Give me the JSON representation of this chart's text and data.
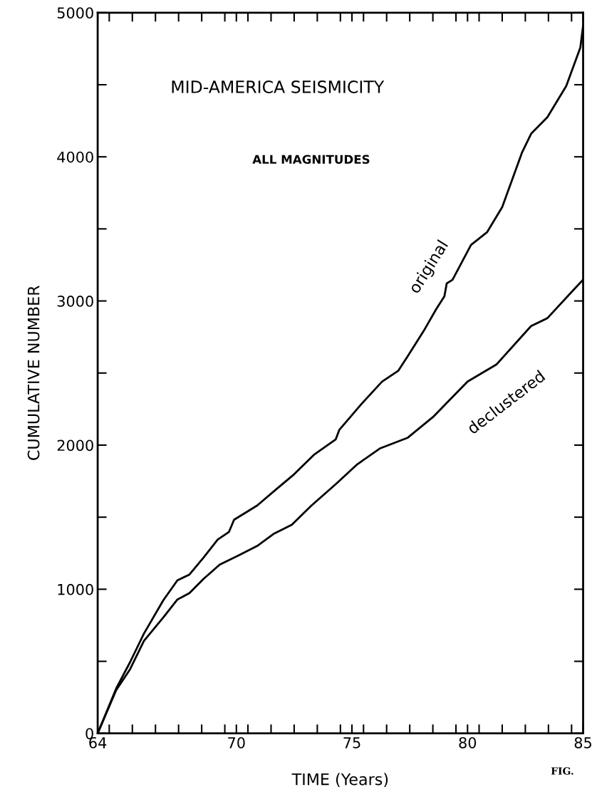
{
  "chart_data": {
    "type": "line",
    "title": "MID-AMERICA SEISMICITY",
    "subtitle": "ALL MAGNITUDES",
    "xlabel": "TIME (Years)",
    "ylabel": "CUMULATIVE NUMBER",
    "annotations": [
      "FIG."
    ],
    "xlim": [
      64,
      85
    ],
    "ylim": [
      0,
      5000
    ],
    "xticks": [
      64,
      {
        "value": 64.5,
        "label": null
      },
      {
        "value": 65.5,
        "label": null
      },
      {
        "value": 66.5,
        "label": null
      },
      {
        "value": 67.5,
        "label": null
      },
      {
        "value": 68.5,
        "label": null
      },
      {
        "value": 69.5,
        "label": null
      },
      70,
      {
        "value": 70.5,
        "label": null
      },
      {
        "value": 71.5,
        "label": null
      },
      {
        "value": 72.5,
        "label": null
      },
      {
        "value": 73.5,
        "label": null
      },
      {
        "value": 74.5,
        "label": null
      },
      75,
      {
        "value": 75.5,
        "label": null
      },
      {
        "value": 76.5,
        "label": null
      },
      {
        "value": 77.5,
        "label": null
      },
      {
        "value": 78.5,
        "label": null
      },
      {
        "value": 79.5,
        "label": null
      },
      80,
      {
        "value": 80.5,
        "label": null
      },
      {
        "value": 81.5,
        "label": null
      },
      {
        "value": 82.5,
        "label": null
      },
      {
        "value": 83.5,
        "label": null
      },
      {
        "value": 84.5,
        "label": null
      },
      85
    ],
    "yticks": [
      0,
      {
        "value": 500,
        "label": null
      },
      1000,
      {
        "value": 1500,
        "label": null
      },
      2000,
      {
        "value": 2500,
        "label": null
      },
      3000,
      {
        "value": 3500,
        "label": null
      },
      4000,
      {
        "value": 4500,
        "label": null
      },
      5000
    ],
    "grid": false,
    "legend": false,
    "marker": "none",
    "line_style": "solid",
    "series": [
      {
        "name": "original",
        "color": "#000000",
        "x": [
          64,
          64.8,
          65.4,
          66.0,
          66.84,
          67.45,
          67.97,
          68.58,
          69.19,
          69.68,
          69.9,
          70.9,
          71.7,
          72.5,
          73.35,
          74.3,
          74.45,
          75.4,
          76.3,
          77.0,
          77.4,
          78.1,
          78.65,
          79.0,
          79.1,
          79.35,
          80.15,
          80.85,
          81.5,
          82.35,
          82.75,
          83.45,
          84.27,
          84.88,
          85.0
        ],
        "values": [
          0,
          311,
          494,
          692,
          924,
          1062,
          1102,
          1220,
          1344,
          1398,
          1482,
          1581,
          1690,
          1798,
          1932,
          2040,
          2105,
          2283,
          2440,
          2515,
          2614,
          2791,
          2945,
          3033,
          3122,
          3147,
          3389,
          3478,
          3651,
          4027,
          4160,
          4274,
          4491,
          4758,
          4911
        ]
      },
      {
        "name": "declustered",
        "color": "#000000",
        "x": [
          64,
          64.8,
          65.4,
          66.0,
          66.84,
          67.45,
          67.97,
          68.58,
          69.28,
          70.1,
          70.9,
          71.6,
          72.4,
          73.25,
          74.3,
          75.2,
          76.2,
          77.4,
          78.5,
          80.0,
          81.25,
          82.75,
          83.45,
          84.65,
          85.0
        ],
        "values": [
          0,
          300,
          445,
          642,
          805,
          929,
          973,
          1072,
          1171,
          1235,
          1300,
          1383,
          1448,
          1581,
          1729,
          1863,
          1976,
          2050,
          2194,
          2441,
          2559,
          2826,
          2880,
          3088,
          3147
        ]
      }
    ]
  }
}
